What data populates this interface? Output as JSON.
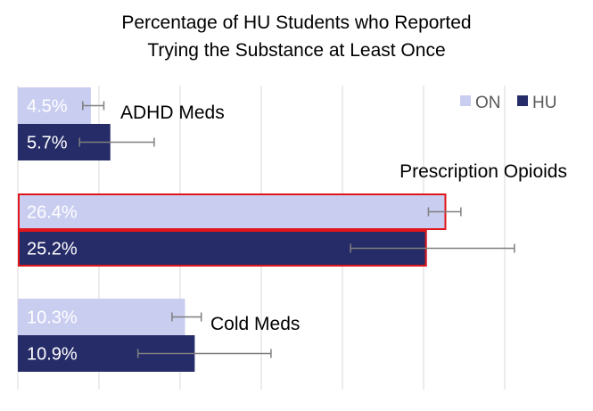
{
  "chart_data": {
    "type": "bar",
    "orientation": "horizontal",
    "title_lines": [
      "Percentage of HU Students who Reported",
      "Trying the Substance at Least Once"
    ],
    "categories": [
      "ADHD Meds",
      "Prescription Opioids",
      "Cold Meds"
    ],
    "series": [
      {
        "name": "ON",
        "color": "#c9cdf0",
        "values": [
          4.5,
          26.4,
          10.3
        ],
        "labels": [
          "4.5%",
          "26.4%",
          "10.3%"
        ],
        "error_low": [
          4.0,
          25.3,
          9.5
        ],
        "error_high": [
          5.3,
          27.3,
          11.3
        ]
      },
      {
        "name": "HU",
        "color": "#262c68",
        "values": [
          5.7,
          25.2,
          10.9
        ],
        "labels": [
          "5.7%",
          "25.2%",
          "10.9%"
        ],
        "error_low": [
          3.8,
          20.5,
          7.4
        ],
        "error_high": [
          8.4,
          30.6,
          15.6
        ]
      }
    ],
    "highlighted_category": "Prescription Opioids",
    "highlight_color": "#e0161b",
    "xlim": [
      0,
      30
    ],
    "grid": true,
    "legend_position": "top-right"
  }
}
